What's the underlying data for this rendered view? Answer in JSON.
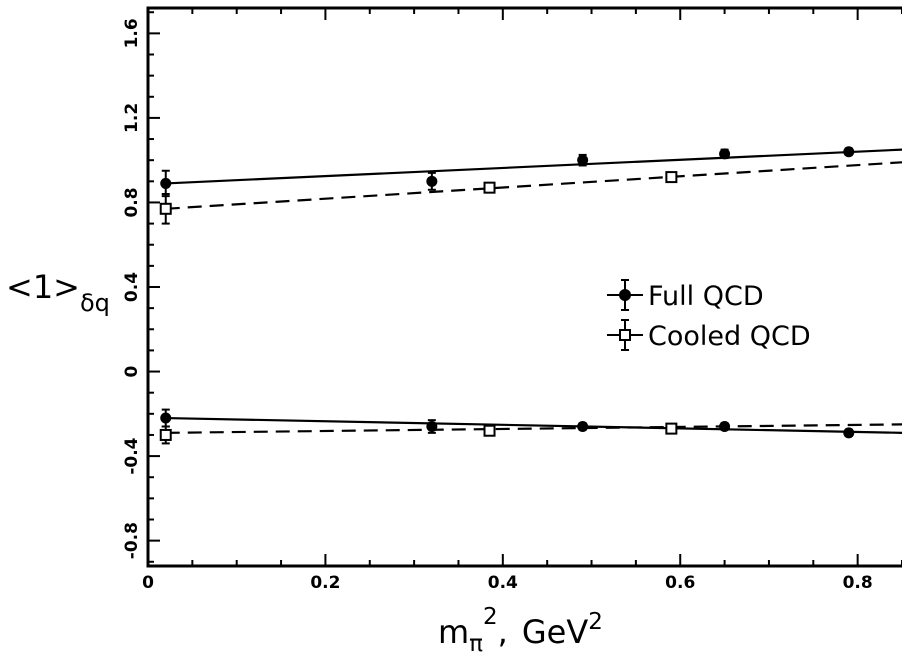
{
  "chart_data": {
    "type": "scatter",
    "title": "",
    "xlabel": {
      "base": "m",
      "sub": "π",
      "sup": "2",
      "sep": ",",
      "unit": "GeV",
      "unit_sup": "2"
    },
    "ylabel": {
      "base": "<1>",
      "sub": "δq"
    },
    "xlim": [
      0,
      0.85
    ],
    "ylim": [
      -0.92,
      1.72
    ],
    "x_ticks": [
      0,
      0.2,
      0.4,
      0.6,
      0.8
    ],
    "x_tick_labels": [
      "0",
      "0.2",
      "0.4",
      "0.6",
      "0.8"
    ],
    "y_ticks": [
      -0.8,
      -0.4,
      0,
      0.4,
      0.8,
      1.2,
      1.6
    ],
    "y_tick_labels": [
      "-0.8",
      "-0.4",
      "0",
      "0.4",
      "0.8",
      "1.2",
      "1.6"
    ],
    "grid": false,
    "legend_position": "center-right",
    "series": [
      {
        "name": "Full QCD",
        "marker": "filled-circle",
        "line": "solid",
        "groups": [
          {
            "x": [
              0.02,
              0.32,
              0.49,
              0.65,
              0.79
            ],
            "y": [
              0.89,
              0.9,
              1.0,
              1.03,
              1.04
            ],
            "err": [
              0.06,
              0.04,
              0.025,
              0.02,
              0.015
            ],
            "fit": [
              0.89,
              1.05
            ]
          },
          {
            "x": [
              0.02,
              0.32,
              0.49,
              0.65,
              0.79
            ],
            "y": [
              -0.22,
              -0.26,
              -0.26,
              -0.26,
              -0.29
            ],
            "err": [
              0.04,
              0.03,
              0.015,
              0.015,
              0.015
            ],
            "fit": [
              -0.22,
              -0.29
            ]
          }
        ]
      },
      {
        "name": "Cooled QCD",
        "marker": "open-square",
        "line": "dashed",
        "groups": [
          {
            "x": [
              0.02,
              0.385,
              0.59
            ],
            "y": [
              0.77,
              0.87,
              0.92
            ],
            "err": [
              0.07,
              0.02,
              0.02
            ],
            "fit": [
              0.77,
              0.99
            ]
          },
          {
            "x": [
              0.02,
              0.385,
              0.59
            ],
            "y": [
              -0.3,
              -0.28,
              -0.27
            ],
            "err": [
              0.04,
              0.02,
              0.015
            ],
            "fit": [
              -0.29,
              -0.25
            ]
          }
        ]
      }
    ]
  }
}
